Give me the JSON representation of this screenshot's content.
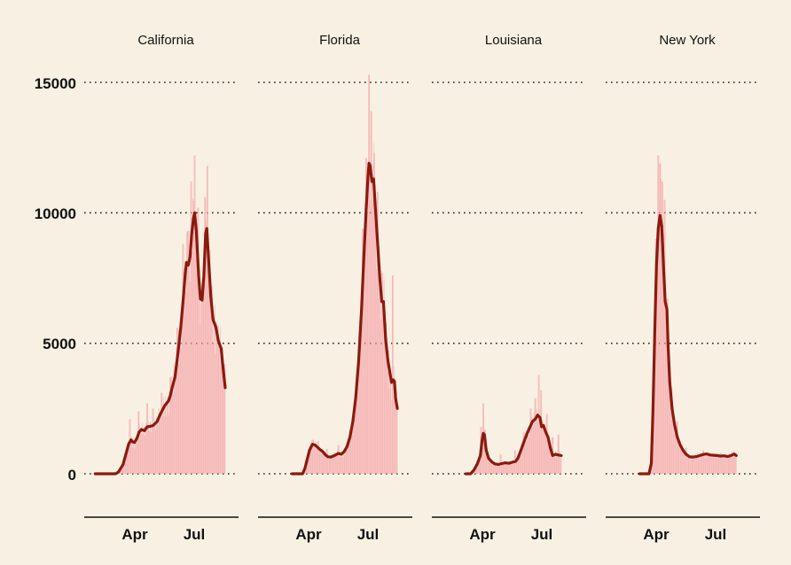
{
  "chart_data": {
    "type": "bar",
    "layout": "small multiples (4 panels, shared y axis)",
    "description": "Daily counts shown as bars with a dark red rolling average line, per state",
    "ylim": [
      -1600,
      15500
    ],
    "yticks": [
      0,
      5000,
      10000,
      15000
    ],
    "grid": "horizontal dotted at y ticks",
    "xlim_day": [
      1,
      268
    ],
    "xticks": [
      {
        "label": "Apr",
        "day": 92
      },
      {
        "label": "Jul",
        "day": 183
      }
    ],
    "colors": {
      "bars": "#f4a6a9",
      "line": "#8b1a0e",
      "background": "#f8f1e3"
    },
    "panels": [
      {
        "name": "California",
        "avg_points": [
          [
            20,
            0
          ],
          [
            55,
            0
          ],
          [
            60,
            60
          ],
          [
            68,
            350
          ],
          [
            78,
            1150
          ],
          [
            82,
            1300
          ],
          [
            85,
            1220
          ],
          [
            88,
            1200
          ],
          [
            92,
            1350
          ],
          [
            96,
            1600
          ],
          [
            100,
            1700
          ],
          [
            105,
            1650
          ],
          [
            110,
            1800
          ],
          [
            115,
            1820
          ],
          [
            120,
            1850
          ],
          [
            127,
            2000
          ],
          [
            133,
            2300
          ],
          [
            140,
            2600
          ],
          [
            147,
            2800
          ],
          [
            150,
            3000
          ],
          [
            153,
            3300
          ],
          [
            158,
            3700
          ],
          [
            163,
            4600
          ],
          [
            168,
            5600
          ],
          [
            172,
            6600
          ],
          [
            176,
            7700
          ],
          [
            178,
            8100
          ],
          [
            181,
            8000
          ],
          [
            184,
            8300
          ],
          [
            187,
            9200
          ],
          [
            190,
            9800
          ],
          [
            192,
            10000
          ],
          [
            195,
            9300
          ],
          [
            199,
            7600
          ],
          [
            202,
            6700
          ],
          [
            205,
            6650
          ],
          [
            208,
            7600
          ],
          [
            211,
            9200
          ],
          [
            213,
            9400
          ],
          [
            216,
            8300
          ],
          [
            220,
            6800
          ],
          [
            224,
            5900
          ],
          [
            229,
            5600
          ],
          [
            233,
            5100
          ],
          [
            238,
            4800
          ],
          [
            241,
            4100
          ],
          [
            245,
            3300
          ]
        ],
        "bar_peaks": [
          [
            80,
            2100
          ],
          [
            95,
            2400
          ],
          [
            110,
            2700
          ],
          [
            120,
            2500
          ],
          [
            135,
            3100
          ],
          [
            150,
            3700
          ],
          [
            162,
            5600
          ],
          [
            172,
            8800
          ],
          [
            180,
            9300
          ],
          [
            186,
            11200
          ],
          [
            192,
            12200
          ],
          [
            198,
            10200
          ],
          [
            205,
            7300
          ],
          [
            210,
            10600
          ],
          [
            214,
            11800
          ],
          [
            220,
            7100
          ],
          [
            232,
            5700
          ],
          [
            244,
            4200
          ]
        ]
      },
      {
        "name": "Florida",
        "avg_points": [
          [
            60,
            0
          ],
          [
            78,
            0
          ],
          [
            82,
            200
          ],
          [
            86,
            550
          ],
          [
            90,
            900
          ],
          [
            95,
            1130
          ],
          [
            100,
            1100
          ],
          [
            107,
            950
          ],
          [
            113,
            850
          ],
          [
            118,
            720
          ],
          [
            122,
            650
          ],
          [
            127,
            640
          ],
          [
            133,
            700
          ],
          [
            140,
            780
          ],
          [
            145,
            750
          ],
          [
            150,
            850
          ],
          [
            155,
            1050
          ],
          [
            160,
            1400
          ],
          [
            165,
            2000
          ],
          [
            170,
            2900
          ],
          [
            175,
            4300
          ],
          [
            180,
            6300
          ],
          [
            184,
            8300
          ],
          [
            188,
            10100
          ],
          [
            191,
            11300
          ],
          [
            193,
            11900
          ],
          [
            195,
            11800
          ],
          [
            198,
            11200
          ],
          [
            201,
            11300
          ],
          [
            204,
            10200
          ],
          [
            208,
            8800
          ],
          [
            212,
            7400
          ],
          [
            215,
            6600
          ],
          [
            218,
            6600
          ],
          [
            222,
            5100
          ],
          [
            226,
            4300
          ],
          [
            229,
            3900
          ],
          [
            232,
            3500
          ],
          [
            235,
            3600
          ],
          [
            237,
            3550
          ],
          [
            239,
            2900
          ],
          [
            242,
            2500
          ]
        ],
        "bar_peaks": [
          [
            95,
            1300
          ],
          [
            105,
            1250
          ],
          [
            120,
            950
          ],
          [
            140,
            1100
          ],
          [
            160,
            1700
          ],
          [
            172,
            3600
          ],
          [
            182,
            9400
          ],
          [
            188,
            12100
          ],
          [
            193,
            15300
          ],
          [
            197,
            13900
          ],
          [
            202,
            12300
          ],
          [
            208,
            10800
          ],
          [
            216,
            7700
          ],
          [
            224,
            5200
          ],
          [
            234,
            7600
          ],
          [
            241,
            2700
          ]
        ]
      },
      {
        "name": "Louisiana",
        "avg_points": [
          [
            60,
            0
          ],
          [
            68,
            0
          ],
          [
            74,
            150
          ],
          [
            80,
            400
          ],
          [
            85,
            700
          ],
          [
            88,
            1300
          ],
          [
            90,
            1550
          ],
          [
            92,
            1500
          ],
          [
            95,
            900
          ],
          [
            99,
            600
          ],
          [
            105,
            450
          ],
          [
            110,
            380
          ],
          [
            116,
            360
          ],
          [
            122,
            390
          ],
          [
            128,
            420
          ],
          [
            134,
            400
          ],
          [
            140,
            440
          ],
          [
            146,
            480
          ],
          [
            150,
            600
          ],
          [
            155,
            900
          ],
          [
            160,
            1200
          ],
          [
            165,
            1500
          ],
          [
            170,
            1750
          ],
          [
            175,
            2000
          ],
          [
            180,
            2100
          ],
          [
            184,
            2250
          ],
          [
            188,
            2150
          ],
          [
            191,
            1800
          ],
          [
            194,
            1850
          ],
          [
            198,
            1600
          ],
          [
            202,
            1400
          ],
          [
            206,
            1000
          ],
          [
            210,
            700
          ],
          [
            215,
            750
          ],
          [
            220,
            720
          ],
          [
            225,
            700
          ]
        ],
        "bar_peaks": [
          [
            86,
            1800
          ],
          [
            90,
            2700
          ],
          [
            93,
            1700
          ],
          [
            120,
            750
          ],
          [
            145,
            900
          ],
          [
            160,
            1600
          ],
          [
            172,
            2500
          ],
          [
            180,
            2900
          ],
          [
            186,
            3800
          ],
          [
            190,
            3200
          ],
          [
            200,
            2300
          ],
          [
            210,
            1400
          ],
          [
            220,
            1500
          ]
        ]
      },
      {
        "name": "New York",
        "avg_points": [
          [
            60,
            0
          ],
          [
            76,
            0
          ],
          [
            80,
            400
          ],
          [
            83,
            2500
          ],
          [
            86,
            5500
          ],
          [
            89,
            8000
          ],
          [
            92,
            9400
          ],
          [
            95,
            9900
          ],
          [
            98,
            9500
          ],
          [
            101,
            8000
          ],
          [
            104,
            6600
          ],
          [
            107,
            6300
          ],
          [
            109,
            4900
          ],
          [
            112,
            3500
          ],
          [
            116,
            2500
          ],
          [
            120,
            1900
          ],
          [
            125,
            1400
          ],
          [
            130,
            1100
          ],
          [
            135,
            900
          ],
          [
            140,
            750
          ],
          [
            146,
            650
          ],
          [
            152,
            640
          ],
          [
            158,
            660
          ],
          [
            164,
            700
          ],
          [
            170,
            740
          ],
          [
            176,
            760
          ],
          [
            182,
            720
          ],
          [
            188,
            710
          ],
          [
            194,
            700
          ],
          [
            200,
            680
          ],
          [
            206,
            690
          ],
          [
            212,
            660
          ],
          [
            218,
            700
          ],
          [
            223,
            760
          ],
          [
            227,
            700
          ]
        ],
        "bar_peaks": [
          [
            88,
            9000
          ],
          [
            92,
            12200
          ],
          [
            95,
            11900
          ],
          [
            99,
            11200
          ],
          [
            103,
            10500
          ],
          [
            108,
            6700
          ],
          [
            115,
            3300
          ],
          [
            125,
            2000
          ],
          [
            140,
            1000
          ],
          [
            170,
            900
          ],
          [
            200,
            800
          ],
          [
            225,
            800
          ]
        ]
      }
    ]
  },
  "panels": [
    {
      "title": "California"
    },
    {
      "title": "Florida"
    },
    {
      "title": "Louisiana"
    },
    {
      "title": "New York"
    }
  ],
  "y_axis": {
    "ticks": [
      "15000",
      "10000",
      "5000",
      "0"
    ]
  },
  "x_axis": {
    "ticks": [
      "Apr",
      "Jul"
    ]
  }
}
